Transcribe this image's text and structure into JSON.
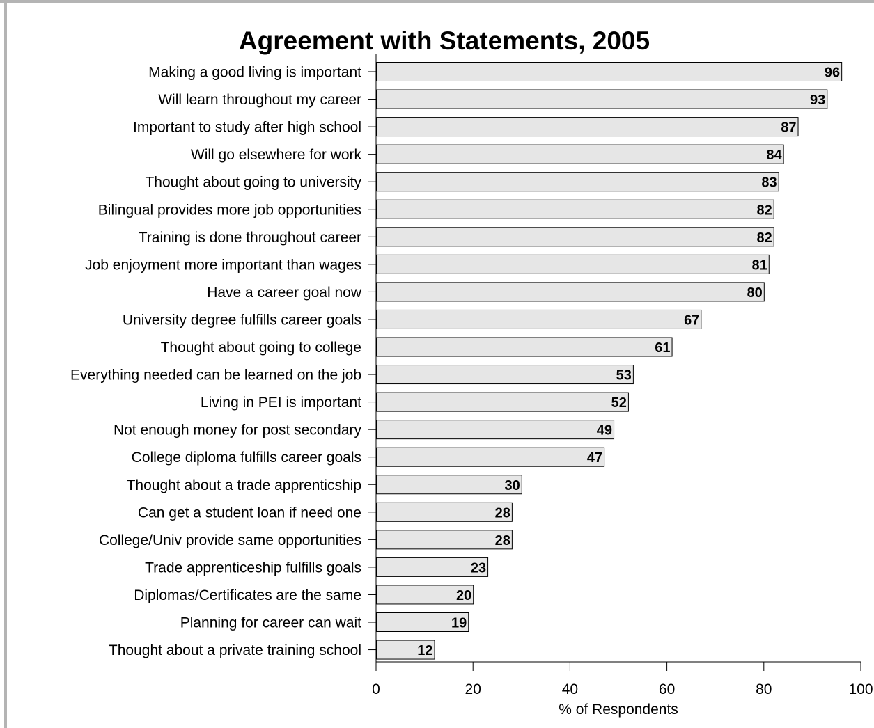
{
  "chart_data": {
    "type": "bar",
    "orientation": "horizontal",
    "title": "Agreement with Statements, 2005",
    "xlabel": "% of Respondents",
    "ylabel": "",
    "xlim": [
      0,
      100
    ],
    "xticks": [
      0,
      20,
      40,
      60,
      80,
      100
    ],
    "grid": false,
    "bar_color": "#e6e6e6",
    "bar_edge_color": "#000000",
    "categories": [
      "Making a good living is important",
      "Will learn throughout my career",
      "Important to study after high school",
      "Will go elsewhere for work",
      "Thought about going to university",
      "Bilingual provides more job opportunities",
      "Training is done throughout career",
      "Job enjoyment more important than wages",
      "Have a career goal now",
      "University degree fulfills career goals",
      "Thought about going to college",
      "Everything needed can be learned on the job",
      "Living in PEI is important",
      "Not enough money for post secondary",
      "College diploma fulfills career goals",
      "Thought about a trade apprenticship",
      "Can get a student loan if need one",
      "College/Univ provide same opportunities",
      "Trade apprenticeship fulfills goals",
      "Diplomas/Certificates are the same",
      "Planning for career can wait",
      "Thought about a private training school"
    ],
    "values": [
      96,
      93,
      87,
      84,
      83,
      82,
      82,
      81,
      80,
      67,
      61,
      53,
      52,
      49,
      47,
      30,
      28,
      28,
      23,
      20,
      19,
      12
    ]
  }
}
